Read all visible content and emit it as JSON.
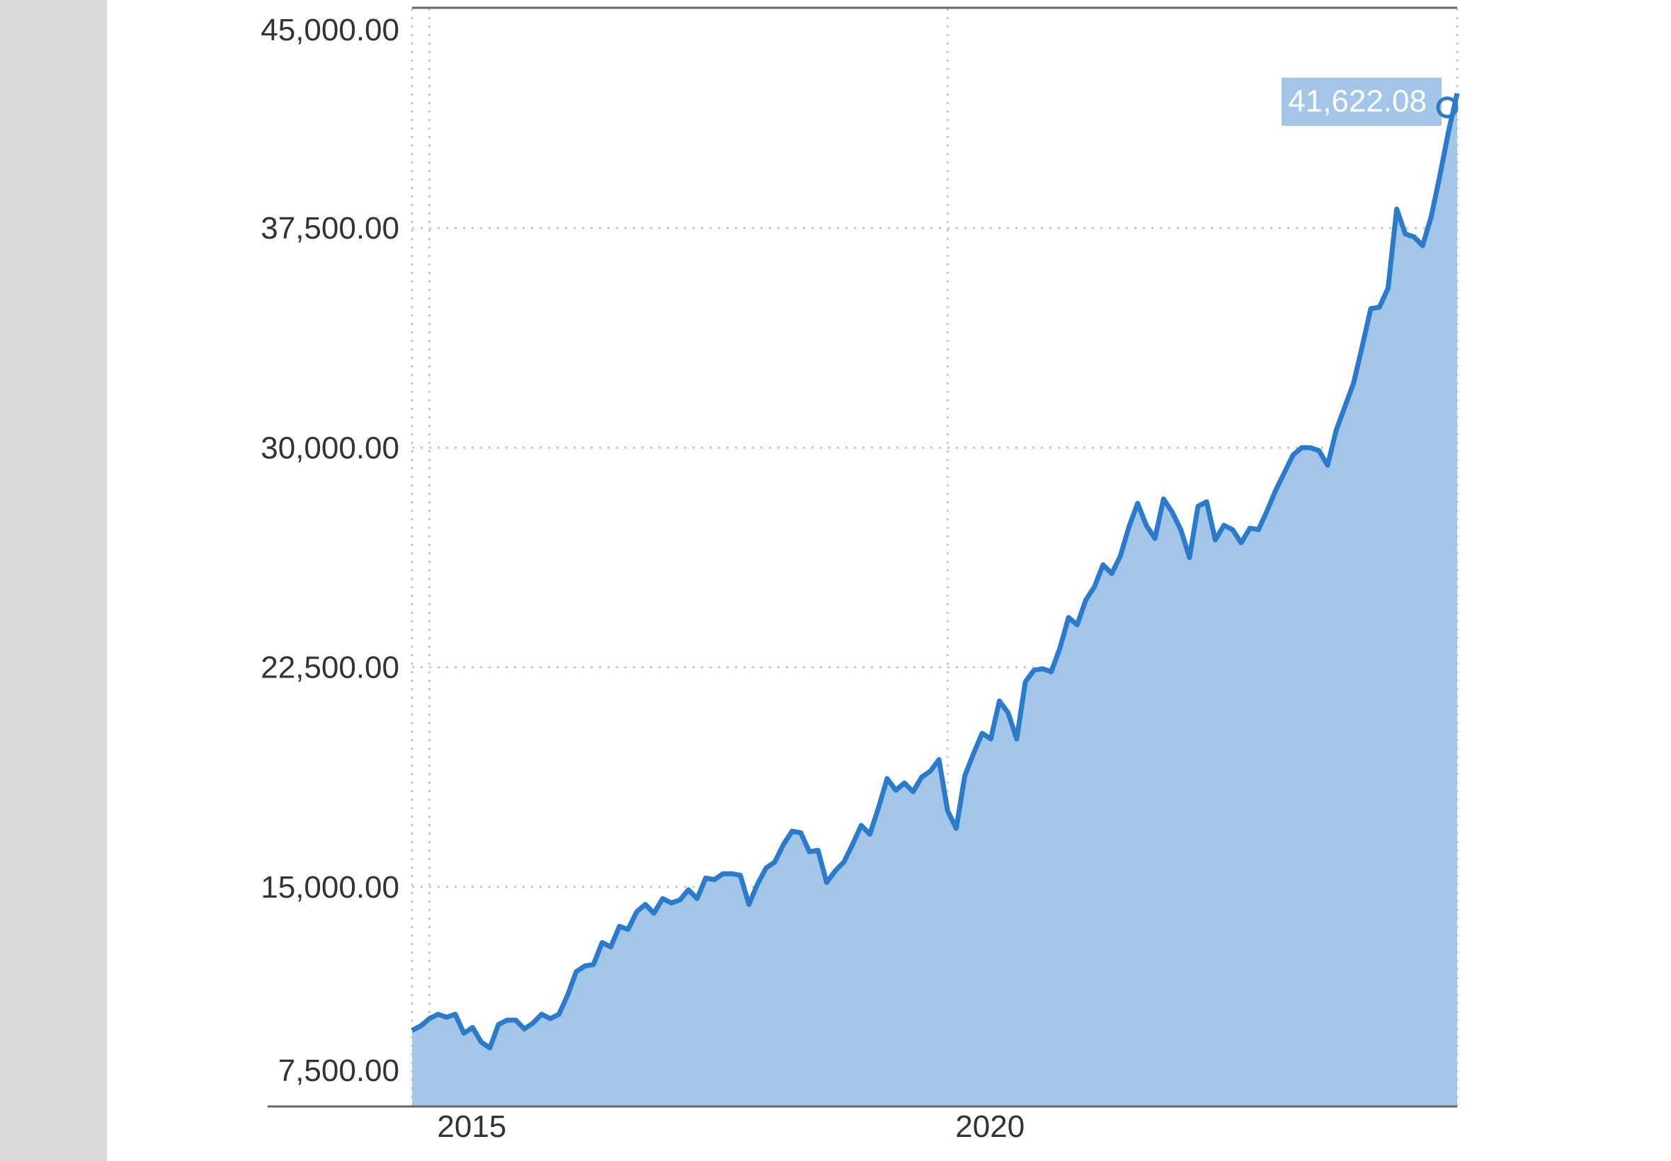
{
  "colors": {
    "background": "#ffffff",
    "sidebar": "#d9d9d9",
    "line": "#2a7bcc",
    "area": "#a3c5e7",
    "grid": "#c8c8c8",
    "axis": "#666666",
    "label_box": "#a3c5e7",
    "label_text": "#ffffff"
  },
  "chart_data": {
    "type": "area",
    "title": "",
    "xlabel": "",
    "ylabel": "",
    "x_ticks": [
      "2015",
      "2020"
    ],
    "y_ticks": [
      "7,500.00",
      "15,000.00",
      "22,500.00",
      "30,000.00",
      "37,500.00",
      "45,000.00"
    ],
    "xlim": [
      "2014-11",
      "2024-12"
    ],
    "ylim": [
      7500,
      45000
    ],
    "grid": true,
    "last_value_label": "41,622.08",
    "x": [
      "2014-11",
      "2014-12",
      "2015-01",
      "2015-02",
      "2015-03",
      "2015-04",
      "2015-05",
      "2015-06",
      "2015-07",
      "2015-08",
      "2015-09",
      "2015-10",
      "2015-11",
      "2015-12",
      "2016-01",
      "2016-02",
      "2016-03",
      "2016-04",
      "2016-05",
      "2016-06",
      "2016-07",
      "2016-08",
      "2016-09",
      "2016-10",
      "2016-11",
      "2016-12",
      "2017-01",
      "2017-02",
      "2017-03",
      "2017-04",
      "2017-05",
      "2017-06",
      "2017-07",
      "2017-08",
      "2017-09",
      "2017-10",
      "2017-11",
      "2017-12",
      "2018-01",
      "2018-02",
      "2018-03",
      "2018-04",
      "2018-05",
      "2018-06",
      "2018-07",
      "2018-08",
      "2018-09",
      "2018-10",
      "2018-11",
      "2018-12",
      "2019-01",
      "2019-02",
      "2019-03",
      "2019-04",
      "2019-05",
      "2019-06",
      "2019-07",
      "2019-08",
      "2019-09",
      "2019-10",
      "2019-11",
      "2019-12",
      "2020-01",
      "2020-02",
      "2020-03",
      "2020-04",
      "2020-05",
      "2020-06",
      "2020-07",
      "2020-08",
      "2020-09",
      "2020-10",
      "2020-11",
      "2020-12",
      "2021-01",
      "2021-02",
      "2021-03",
      "2021-04",
      "2021-05",
      "2021-06",
      "2021-07",
      "2021-08",
      "2021-09",
      "2021-10",
      "2021-11",
      "2021-12",
      "2022-01",
      "2022-02",
      "2022-03",
      "2022-04",
      "2022-05",
      "2022-06",
      "2022-07",
      "2022-08",
      "2022-09",
      "2022-10",
      "2022-11",
      "2022-12",
      "2023-01",
      "2023-02",
      "2023-03",
      "2023-04",
      "2023-05",
      "2023-06",
      "2023-07",
      "2023-08",
      "2023-09",
      "2023-10",
      "2023-11",
      "2023-12",
      "2024-01",
      "2024-02",
      "2024-03",
      "2024-04",
      "2024-05",
      "2024-06",
      "2024-07",
      "2024-08",
      "2024-09",
      "2024-10",
      "2024-11",
      "2024-12"
    ],
    "series": [
      {
        "values": [
          10100,
          10250,
          10500,
          10650,
          10550,
          10650,
          10000,
          10200,
          9700,
          9500,
          10300,
          10450,
          10450,
          10150,
          10350,
          10650,
          10500,
          10650,
          11300,
          12100,
          12300,
          12350,
          13100,
          12950,
          13650,
          13550,
          14150,
          14400,
          14100,
          14600,
          14450,
          14550,
          14900,
          14600,
          15300,
          15250,
          15450,
          15450,
          15400,
          14400,
          15100,
          15650,
          15850,
          16450,
          16900,
          16850,
          16200,
          16250,
          15150,
          15550,
          15850,
          16450,
          17100,
          16800,
          17700,
          18700,
          18300,
          18550,
          18250,
          18750,
          18950,
          19350,
          17600,
          17000,
          18800,
          19550,
          20250,
          20050,
          21350,
          20950,
          20050,
          22000,
          22400,
          22450,
          22350,
          23150,
          24200,
          23950,
          24800,
          25250,
          26000,
          25700,
          26300,
          27300,
          28100,
          27350,
          26900,
          28250,
          27800,
          27200,
          26250,
          28000,
          28150,
          26850,
          27350,
          27200,
          26750,
          27250,
          27200,
          27850,
          28550,
          29150,
          29750,
          30000,
          30000,
          29900,
          29400,
          30600,
          31400,
          32200,
          33450,
          34750,
          34800,
          35450,
          38150,
          37300,
          37200,
          36900,
          37900,
          39300,
          40800,
          42100
        ]
      }
    ]
  }
}
